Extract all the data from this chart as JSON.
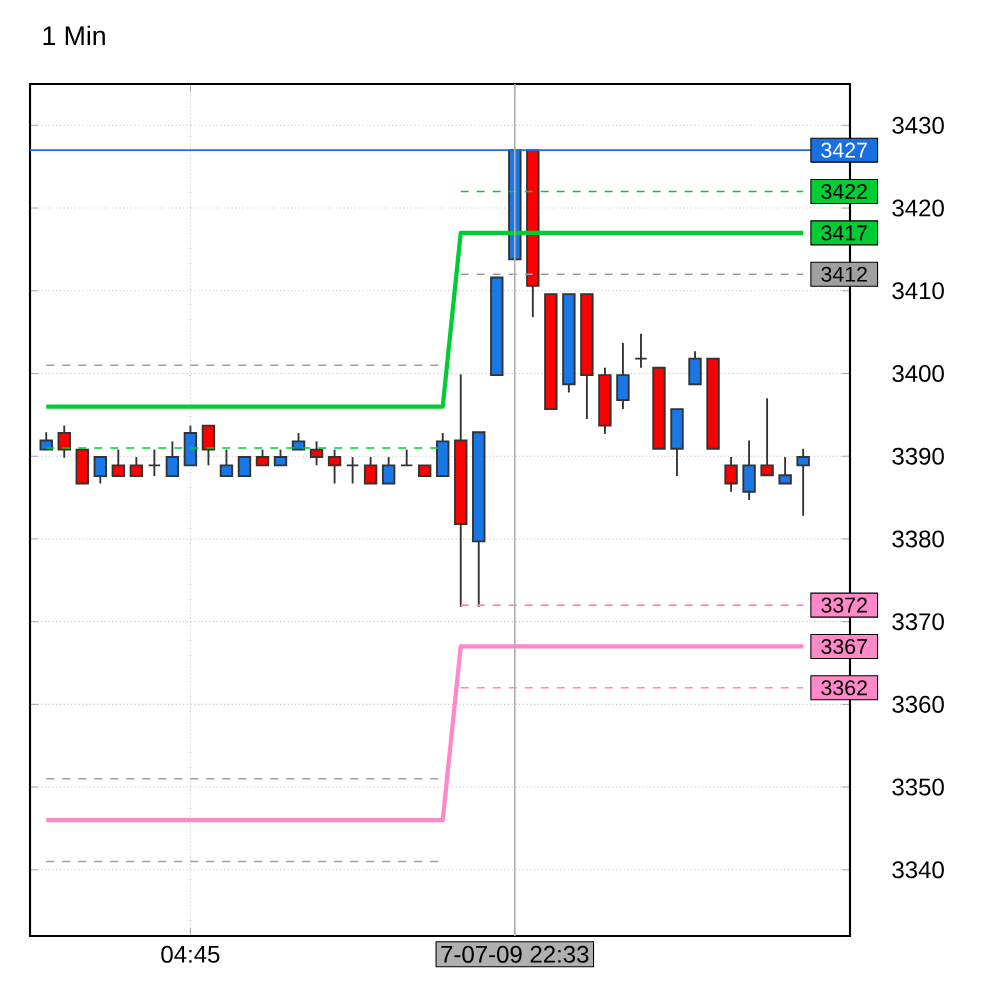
{
  "chart_data": {
    "type": "candlestick",
    "title": "1 Min",
    "categories": [
      null,
      null,
      null,
      null,
      null,
      null,
      null,
      null,
      "04:45",
      null,
      null,
      null,
      null,
      null,
      null,
      null,
      null,
      null,
      null,
      null,
      null,
      null,
      null,
      null,
      null,
      null,
      "7-07-09 22:33",
      null,
      null,
      null,
      null,
      null,
      null,
      null,
      null,
      null,
      null,
      null,
      null,
      null,
      null,
      null,
      null
    ],
    "ohlc": [
      [
        3390.8,
        3392.9,
        3390.8,
        3391.9
      ],
      [
        3392.8,
        3393.7,
        3389.8,
        3390.8
      ],
      [
        3390.8,
        3390.8,
        3386.7,
        3386.7
      ],
      [
        3387.6,
        3389.9,
        3386.7,
        3389.9
      ],
      [
        3388.9,
        3390.8,
        3387.6,
        3387.6
      ],
      [
        3388.9,
        3389.9,
        3387.6,
        3387.6
      ],
      [
        3388.9,
        3390.8,
        3387.6,
        3388.9
      ],
      [
        3387.6,
        3391.8,
        3387.6,
        3389.9
      ],
      [
        3388.9,
        3393.7,
        3388.9,
        3392.8
      ],
      [
        3393.7,
        3393.7,
        3388.9,
        3390.8
      ],
      [
        3387.6,
        3390.8,
        3387.6,
        3388.9
      ],
      [
        3387.6,
        3389.9,
        3387.6,
        3389.9
      ],
      [
        3389.9,
        3390.8,
        3388.9,
        3388.9
      ],
      [
        3388.9,
        3390.8,
        3388.9,
        3389.9
      ],
      [
        3390.8,
        3392.8,
        3390.8,
        3391.8
      ],
      [
        3390.8,
        3391.8,
        3388.9,
        3389.9
      ],
      [
        3389.9,
        3390.8,
        3386.7,
        3388.9
      ],
      [
        3388.9,
        3389.9,
        3386.7,
        3388.9
      ],
      [
        3388.9,
        3389.9,
        3386.7,
        3386.7
      ],
      [
        3386.7,
        3389.9,
        3386.7,
        3388.9
      ],
      [
        3388.9,
        3390.8,
        3388.9,
        3388.9
      ],
      [
        3388.9,
        3388.9,
        3387.6,
        3387.6
      ],
      [
        3387.6,
        3392.8,
        3387.6,
        3391.8
      ],
      [
        3391.9,
        3399.9,
        3371.8,
        3381.8
      ],
      [
        3379.7,
        3392.9,
        3371.8,
        3392.9
      ],
      [
        3399.8,
        3411.6,
        3399.8,
        3411.6
      ],
      [
        3413.8,
        3427,
        3413.8,
        3427
      ],
      [
        3427,
        3427,
        3406.8,
        3410.6
      ],
      [
        3409.6,
        3409.6,
        3395.7,
        3395.7
      ],
      [
        3398.7,
        3409.6,
        3397.7,
        3409.6
      ],
      [
        3409.6,
        3409.6,
        3394.5,
        3399.8
      ],
      [
        3399.8,
        3400.7,
        3392.7,
        3393.7
      ],
      [
        3396.8,
        3403.7,
        3395.7,
        3399.8
      ],
      [
        3401.8,
        3404.8,
        3400.7,
        3401.8
      ],
      [
        3400.7,
        3400.7,
        3390.9,
        3390.9
      ],
      [
        3390.9,
        3395.7,
        3387.6,
        3395.7
      ],
      [
        3398.7,
        3402.7,
        3398.7,
        3401.8
      ],
      [
        3401.8,
        3401.8,
        3390.9,
        3390.9
      ],
      [
        3388.9,
        3389.9,
        3385.7,
        3386.7
      ],
      [
        3385.7,
        3391.9,
        3384.7,
        3388.9
      ],
      [
        3388.9,
        3397.0,
        3387.7,
        3387.7
      ],
      [
        3386.7,
        3389.9,
        3386.7,
        3387.7
      ],
      [
        3388.9,
        3390.9,
        3382.8,
        3389.9
      ]
    ],
    "colors": [
      "#1a78e6",
      "#ff0000",
      "#ff0000",
      "#1a78e6",
      "#ff0000",
      "#ff0000",
      "#333333",
      "#1a78e6",
      "#1a78e6",
      "#ff0000",
      "#1a78e6",
      "#1a78e6",
      "#ff0000",
      "#1a78e6",
      "#1a78e6",
      "#ff0000",
      "#ff0000",
      "#333333",
      "#ff0000",
      "#1a78e6",
      "#333333",
      "#ff0000",
      "#1a78e6",
      "#ff0000",
      "#1a78e6",
      "#1a78e6",
      "#1a78e6",
      "#ff0000",
      "#ff0000",
      "#1a78e6",
      "#ff0000",
      "#ff0000",
      "#1a78e6",
      "#333333",
      "#ff0000",
      "#1a78e6",
      "#1a78e6",
      "#ff0000",
      "#ff0000",
      "#1a78e6",
      "#ff0000",
      "#1a78e6",
      "#1a78e6"
    ],
    "series": [
      {
        "type": "line",
        "color": "#00cc33",
        "line_style": "solid",
        "values": [
          3396,
          3396,
          3396,
          3396,
          3396,
          3396,
          3396,
          3396,
          3396,
          3396,
          3396,
          3396,
          3396,
          3396,
          3396,
          3396,
          3396,
          3396,
          3396,
          3396,
          3396,
          3396,
          3396,
          3417,
          3417,
          3417,
          3417,
          3417,
          3417,
          3417,
          3417,
          3417,
          3417,
          3417,
          3417,
          3417,
          3417,
          3417,
          3417,
          3417,
          3417,
          3417,
          3417
        ],
        "value_labels": [
          null,
          null,
          null,
          null,
          null,
          null,
          null,
          null,
          null,
          null,
          null,
          null,
          null,
          null,
          null,
          null,
          null,
          null,
          null,
          null,
          null,
          null,
          null,
          null,
          null,
          null,
          null,
          null,
          null,
          null,
          null,
          null,
          null,
          null,
          null,
          null,
          null,
          null,
          null,
          null,
          null,
          null,
          "3417"
        ]
      },
      {
        "type": "line",
        "color": "#ff88c8",
        "line_style": "solid",
        "values": [
          3346,
          3346,
          3346,
          3346,
          3346,
          3346,
          3346,
          3346,
          3346,
          3346,
          3346,
          3346,
          3346,
          3346,
          3346,
          3346,
          3346,
          3346,
          3346,
          3346,
          3346,
          3346,
          3346,
          3367,
          3367,
          3367,
          3367,
          3367,
          3367,
          3367,
          3367,
          3367,
          3367,
          3367,
          3367,
          3367,
          3367,
          3367,
          3367,
          3367,
          3367,
          3367,
          3367
        ],
        "value_labels": [
          null,
          null,
          null,
          null,
          null,
          null,
          null,
          null,
          null,
          null,
          null,
          null,
          null,
          null,
          null,
          null,
          null,
          null,
          null,
          null,
          null,
          null,
          null,
          null,
          null,
          null,
          null,
          null,
          null,
          null,
          null,
          null,
          null,
          null,
          null,
          null,
          null,
          null,
          null,
          null,
          null,
          null,
          "3367"
        ]
      },
      {
        "type": "line",
        "color": "#00cc33",
        "line_style": "dashed",
        "values": [
          3391,
          3391,
          3391,
          3391,
          3391,
          3391,
          3391,
          3391,
          3391,
          3391,
          3391,
          3391,
          3391,
          3391,
          3391,
          3391,
          3391,
          3391,
          3391,
          3391,
          3391,
          3391,
          3391,
          null,
          null,
          null,
          null,
          null,
          null,
          null,
          null,
          null,
          null,
          null,
          null,
          null,
          null,
          null,
          null,
          null,
          null,
          null,
          null
        ]
      },
      {
        "type": "line",
        "color": "#a0a0a0",
        "line_style": "dashed",
        "values": [
          3401,
          3401,
          3401,
          3401,
          3401,
          3401,
          3401,
          3401,
          3401,
          3401,
          3401,
          3401,
          3401,
          3401,
          3401,
          3401,
          3401,
          3401,
          3401,
          3401,
          3401,
          3401,
          3401,
          null,
          null,
          null,
          null,
          null,
          null,
          null,
          null,
          null,
          null,
          null,
          null,
          null,
          null,
          null,
          null,
          null,
          null,
          null,
          null
        ]
      },
      {
        "type": "line",
        "color": "#a0a0a0",
        "line_style": "dashed",
        "values": [
          3351,
          3351,
          3351,
          3351,
          3351,
          3351,
          3351,
          3351,
          3351,
          3351,
          3351,
          3351,
          3351,
          3351,
          3351,
          3351,
          3351,
          3351,
          3351,
          3351,
          3351,
          3351,
          3351,
          null,
          null,
          null,
          null,
          null,
          null,
          null,
          null,
          null,
          null,
          null,
          null,
          null,
          null,
          null,
          null,
          null,
          null,
          null,
          null
        ]
      },
      {
        "type": "line",
        "color": "#a0a0a0",
        "line_style": "dashed",
        "values": [
          3341,
          3341,
          3341,
          3341,
          3341,
          3341,
          3341,
          3341,
          3341,
          3341,
          3341,
          3341,
          3341,
          3341,
          3341,
          3341,
          3341,
          3341,
          3341,
          3341,
          3341,
          3341,
          3341,
          null,
          null,
          null,
          null,
          null,
          null,
          null,
          null,
          null,
          null,
          null,
          null,
          null,
          null,
          null,
          null,
          null,
          null,
          null,
          null
        ]
      },
      {
        "type": "line",
        "color": "#00cc33",
        "line_style": "dashed",
        "values": [
          null,
          null,
          null,
          null,
          null,
          null,
          null,
          null,
          null,
          null,
          null,
          null,
          null,
          null,
          null,
          null,
          null,
          null,
          null,
          null,
          null,
          null,
          null,
          3422,
          3422,
          3422,
          3422,
          3422,
          3422,
          3422,
          3422,
          3422,
          3422,
          3422,
          3422,
          3422,
          3422,
          3422,
          3422,
          3422,
          3422,
          3422,
          3422
        ],
        "value_labels": [
          null,
          null,
          null,
          null,
          null,
          null,
          null,
          null,
          null,
          null,
          null,
          null,
          null,
          null,
          null,
          null,
          null,
          null,
          null,
          null,
          null,
          null,
          null,
          null,
          null,
          null,
          null,
          null,
          null,
          null,
          null,
          null,
          null,
          null,
          null,
          null,
          null,
          null,
          null,
          null,
          null,
          null,
          "3422"
        ]
      },
      {
        "type": "line",
        "color": "#a0a0a0",
        "line_style": "dashed",
        "values": [
          null,
          null,
          null,
          null,
          null,
          null,
          null,
          null,
          null,
          null,
          null,
          null,
          null,
          null,
          null,
          null,
          null,
          null,
          null,
          null,
          null,
          null,
          null,
          3412,
          3412,
          3412,
          3412,
          3412,
          3412,
          3412,
          3412,
          3412,
          3412,
          3412,
          3412,
          3412,
          3412,
          3412,
          3412,
          3412,
          3412,
          3412,
          3412
        ],
        "value_labels": [
          null,
          null,
          null,
          null,
          null,
          null,
          null,
          null,
          null,
          null,
          null,
          null,
          null,
          null,
          null,
          null,
          null,
          null,
          null,
          null,
          null,
          null,
          null,
          null,
          null,
          null,
          null,
          null,
          null,
          null,
          null,
          null,
          null,
          null,
          null,
          null,
          null,
          null,
          null,
          null,
          null,
          null,
          "3412"
        ]
      },
      {
        "type": "line",
        "color": "#ff88c8",
        "line_style": "dashed",
        "values": [
          null,
          null,
          null,
          null,
          null,
          null,
          null,
          null,
          null,
          null,
          null,
          null,
          null,
          null,
          null,
          null,
          null,
          null,
          null,
          null,
          null,
          null,
          null,
          3372,
          3372,
          3372,
          3372,
          3372,
          3372,
          3372,
          3372,
          3372,
          3372,
          3372,
          3372,
          3372,
          3372,
          3372,
          3372,
          3372,
          3372,
          3372,
          3372
        ],
        "value_labels": [
          null,
          null,
          null,
          null,
          null,
          null,
          null,
          null,
          null,
          null,
          null,
          null,
          null,
          null,
          null,
          null,
          null,
          null,
          null,
          null,
          null,
          null,
          null,
          null,
          null,
          null,
          null,
          null,
          null,
          null,
          null,
          null,
          null,
          null,
          null,
          null,
          null,
          null,
          null,
          null,
          null,
          null,
          "3372"
        ]
      },
      {
        "type": "line",
        "color": "#ff88c8",
        "line_style": "dashed",
        "values": [
          null,
          null,
          null,
          null,
          null,
          null,
          null,
          null,
          null,
          null,
          null,
          null,
          null,
          null,
          null,
          null,
          null,
          null,
          null,
          null,
          null,
          null,
          null,
          3362,
          3362,
          3362,
          3362,
          3362,
          3362,
          3362,
          3362,
          3362,
          3362,
          3362,
          3362,
          3362,
          3362,
          3362,
          3362,
          3362,
          3362,
          3362,
          3362
        ],
        "value_labels": [
          null,
          null,
          null,
          null,
          null,
          null,
          null,
          null,
          null,
          null,
          null,
          null,
          null,
          null,
          null,
          null,
          null,
          null,
          null,
          null,
          null,
          null,
          null,
          null,
          null,
          null,
          null,
          null,
          null,
          null,
          null,
          null,
          null,
          null,
          null,
          null,
          null,
          null,
          null,
          null,
          null,
          null,
          "3362"
        ]
      }
    ],
    "ref_lines": [
      {
        "axis": "y",
        "value": 3427,
        "label": "3427",
        "color": "#1a6fe0"
      },
      {
        "axis": "x",
        "value": "7-07-09 22:33",
        "color": "#b0b0b0"
      }
    ],
    "ylim": [
      3332,
      3435
    ],
    "yticks": [
      3340,
      3350,
      3360,
      3370,
      3380,
      3390,
      3400,
      3410,
      3420,
      3430
    ],
    "grid": true
  }
}
